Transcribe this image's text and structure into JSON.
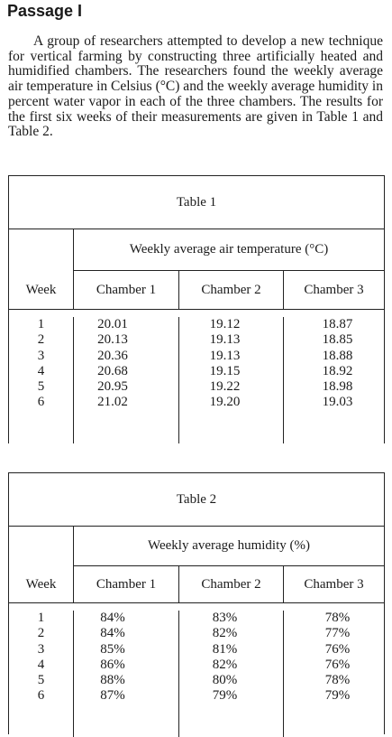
{
  "heading": "Passage I",
  "passage": "A group of researchers attempted to develop a new technique for vertical farming by constructing three artificially heated and humidified chambers. The researchers found the weekly average air temperature in Celsius (°C) and the weekly average humidity in percent water vapor in each of the three chambers. The results for the first six weeks of their measurements are given in Table 1 and Table 2.",
  "table1": {
    "title": "Table 1",
    "subtitle": "Weekly average air temperature (°C)",
    "col_week": "Week",
    "col_c1": "Chamber 1",
    "col_c2": "Chamber 2",
    "col_c3": "Chamber 3",
    "weeks": [
      "1",
      "2",
      "3",
      "4",
      "5",
      "6"
    ],
    "chamber1": [
      "20.01",
      "20.13",
      "20.36",
      "20.68",
      "20.95",
      "21.02"
    ],
    "chamber2": [
      "19.12",
      "19.13",
      "19.13",
      "19.15",
      "19.22",
      "19.20"
    ],
    "chamber3": [
      "18.87",
      "18.85",
      "18.88",
      "18.92",
      "18.98",
      "19.03"
    ]
  },
  "table2": {
    "title": "Table 2",
    "subtitle": "Weekly average humidity (%)",
    "col_week": "Week",
    "col_c1": "Chamber 1",
    "col_c2": "Chamber 2",
    "col_c3": "Chamber 3",
    "weeks": [
      "1",
      "2",
      "3",
      "4",
      "5",
      "6"
    ],
    "chamber1": [
      "84%",
      "84%",
      "85%",
      "86%",
      "88%",
      "87%"
    ],
    "chamber2": [
      "83%",
      "82%",
      "81%",
      "82%",
      "80%",
      "79%"
    ],
    "chamber3": [
      "78%",
      "77%",
      "76%",
      "76%",
      "78%",
      "79%"
    ]
  }
}
